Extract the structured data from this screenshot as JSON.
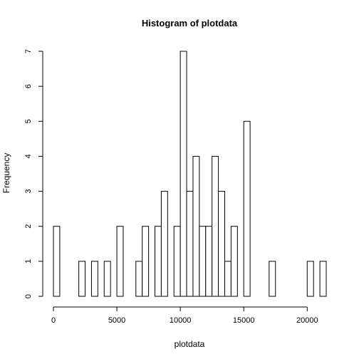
{
  "chart_data": {
    "type": "bar",
    "subtype": "histogram",
    "title": "Histogram of plotdata",
    "xlabel": "plotdata",
    "ylabel": "Frequency",
    "bin_width": 500,
    "bin_start": 0,
    "bin_end": 21500,
    "xlim": [
      0,
      21500
    ],
    "ylim": [
      0,
      7
    ],
    "x_ticks": [
      0,
      5000,
      10000,
      15000,
      20000
    ],
    "y_ticks": [
      0,
      1,
      2,
      3,
      4,
      5,
      6,
      7
    ],
    "counts": [
      2,
      0,
      0,
      0,
      1,
      0,
      1,
      0,
      1,
      0,
      2,
      0,
      0,
      1,
      2,
      0,
      2,
      3,
      0,
      2,
      7,
      3,
      4,
      2,
      2,
      4,
      3,
      1,
      2,
      0,
      5,
      0,
      0,
      0,
      1,
      0,
      0,
      0,
      0,
      0,
      1,
      0,
      1
    ]
  }
}
